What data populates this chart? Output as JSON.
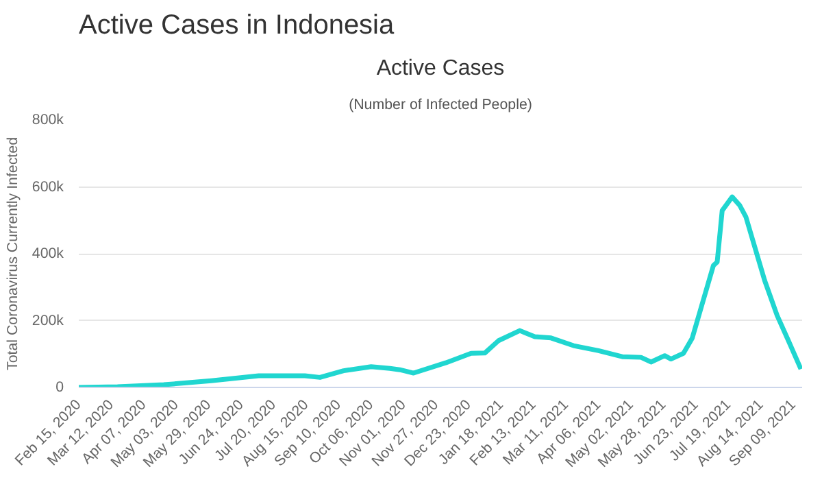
{
  "chart_data": {
    "type": "line",
    "title": "Active Cases",
    "subtitle": "(Number of Infected People)",
    "ylabel": "Total Coronavirus Currently Infected",
    "annotations": [
      "Active Cases in Indonesia"
    ],
    "x": [
      "2020-02-15",
      "2020-03-17",
      "2020-04-23",
      "2020-05-31",
      "2020-07-08",
      "2020-08-14",
      "2020-08-26",
      "2020-09-14",
      "2020-10-06",
      "2020-10-21",
      "2020-10-29",
      "2020-11-09",
      "2020-12-05",
      "2020-12-25",
      "2021-01-05",
      "2021-01-16",
      "2021-02-02",
      "2021-02-14",
      "2021-02-27",
      "2021-03-17",
      "2021-04-06",
      "2021-04-25",
      "2021-05-10",
      "2021-05-18",
      "2021-05-29",
      "2021-06-03",
      "2021-06-13",
      "2021-06-20",
      "2021-06-27",
      "2021-07-07",
      "2021-07-10",
      "2021-07-14",
      "2021-07-22",
      "2021-07-28",
      "2021-08-02",
      "2021-08-08",
      "2021-08-17",
      "2021-08-27",
      "2021-09-05",
      "2021-09-15"
    ],
    "series": [
      {
        "color": "#20d6d0",
        "values": [
          0,
          2000,
          8000,
          20000,
          35000,
          35000,
          30000,
          50000,
          62000,
          57000,
          53000,
          43000,
          74000,
          102000,
          103000,
          140000,
          170000,
          152000,
          148000,
          125000,
          110000,
          92000,
          90000,
          76000,
          95000,
          85000,
          102000,
          147000,
          237000,
          365000,
          375000,
          529000,
          570000,
          545000,
          510000,
          434000,
          320000,
          215000,
          140000,
          55000
        ]
      }
    ],
    "xlim": [
      "2020-02-15",
      "2021-09-16"
    ],
    "xticks": [
      {
        "value": "2020-02-15",
        "label": "Feb 15, 2020"
      },
      {
        "value": "2020-03-12",
        "label": "Mar 12, 2020"
      },
      {
        "value": "2020-04-07",
        "label": "Apr 07, 2020"
      },
      {
        "value": "2020-05-03",
        "label": "May 03, 2020"
      },
      {
        "value": "2020-05-29",
        "label": "May 29, 2020"
      },
      {
        "value": "2020-06-24",
        "label": "Jun 24, 2020"
      },
      {
        "value": "2020-07-20",
        "label": "Jul 20, 2020"
      },
      {
        "value": "2020-08-15",
        "label": "Aug 15, 2020"
      },
      {
        "value": "2020-09-10",
        "label": "Sep 10, 2020"
      },
      {
        "value": "2020-10-06",
        "label": "Oct 06, 2020"
      },
      {
        "value": "2020-11-01",
        "label": "Nov 01, 2020"
      },
      {
        "value": "2020-11-27",
        "label": "Nov 27, 2020"
      },
      {
        "value": "2020-12-23",
        "label": "Dec 23, 2020"
      },
      {
        "value": "2021-01-18",
        "label": "Jan 18, 2021"
      },
      {
        "value": "2021-02-13",
        "label": "Feb 13, 2021"
      },
      {
        "value": "2021-03-11",
        "label": "Mar 11, 2021"
      },
      {
        "value": "2021-04-06",
        "label": "Apr 06, 2021"
      },
      {
        "value": "2021-05-02",
        "label": "May 02, 2021"
      },
      {
        "value": "2021-05-28",
        "label": "May 28, 2021"
      },
      {
        "value": "2021-06-23",
        "label": "Jun 23, 2021"
      },
      {
        "value": "2021-07-19",
        "label": "Jul 19, 2021"
      },
      {
        "value": "2021-08-14",
        "label": "Aug 14, 2021"
      },
      {
        "value": "2021-09-09",
        "label": "Sep 09, 2021"
      }
    ],
    "ylim": [
      0,
      800000
    ],
    "yticks": [
      0,
      {
        "value": 200000,
        "label": "200k"
      },
      {
        "value": 400000,
        "label": "400k"
      },
      {
        "value": 600000,
        "label": "600k"
      },
      {
        "value": 800000,
        "label": "800k"
      }
    ],
    "grid": "y",
    "marker": "none",
    "line_style": "solid"
  }
}
